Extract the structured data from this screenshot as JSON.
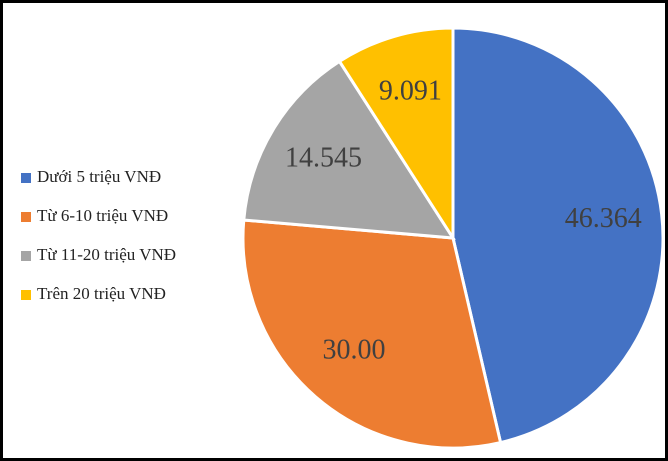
{
  "chart_data": {
    "type": "pie",
    "categories": [
      "Dưới 5 triệu VNĐ",
      "Từ 6-10 triệu VNĐ",
      "Từ 11-20 triệu VNĐ",
      "Trên 20 triệu VNĐ"
    ],
    "values": [
      46.364,
      30,
      14.545,
      9.091
    ],
    "value_labels": [
      "46.364",
      "30.00",
      "14.545",
      "9.091"
    ],
    "colors": [
      "#4472c4",
      "#ed7d31",
      "#a5a5a5",
      "#ffc000"
    ],
    "legend": "left"
  }
}
